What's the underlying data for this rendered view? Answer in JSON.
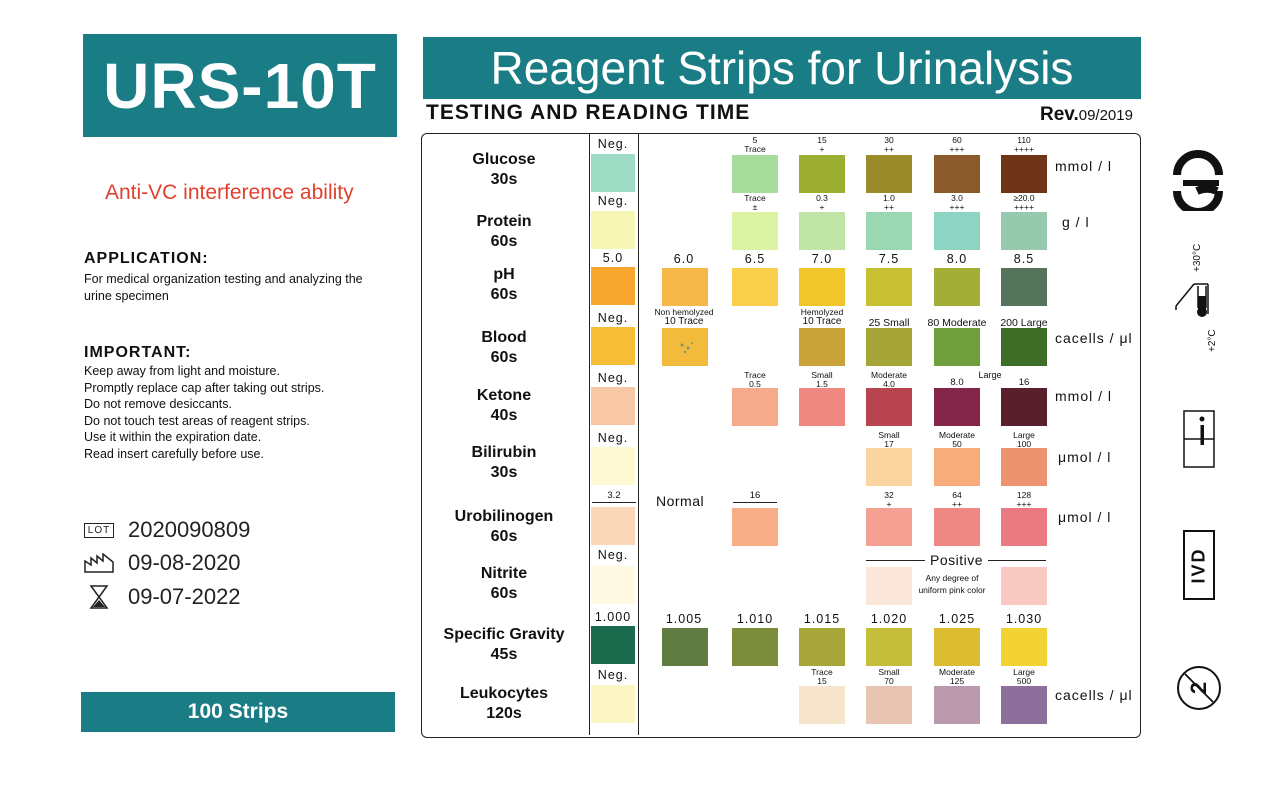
{
  "brand": "URS-10T",
  "feature": "Anti-VC interference ability",
  "application": {
    "heading": "APPLICATION:",
    "text": "For medical organization testing and analyzing the urine specimen"
  },
  "important": {
    "heading": "IMPORTANT:",
    "lines": [
      "Keep away from light and moisture.",
      "Promptly replace cap after taking out strips.",
      "Do not remove desiccants.",
      "Do not touch test areas of reagent strips.",
      "Use it within the expiration date.",
      "Read insert carefully before use."
    ]
  },
  "lot": {
    "label": "LOT",
    "value": "2020090809"
  },
  "manufactured": "09-08-2020",
  "expiry": "09-07-2022",
  "strips": "100 Strips",
  "title": "Reagent Strips for Urinalysis",
  "reading_time": "TESTING AND READING TIME",
  "rev": {
    "label": "Rev.",
    "value": "09/2019"
  },
  "neg": "Neg.",
  "rows": {
    "glucose": {
      "name": "Glucose",
      "time": "30s",
      "unit": "mmol / l",
      "labels": [
        [
          "5",
          "Trace"
        ],
        [
          "15",
          "+"
        ],
        [
          "30",
          "++"
        ],
        [
          "60",
          "+++"
        ],
        [
          "110",
          "++++"
        ]
      ]
    },
    "protein": {
      "name": "Protein",
      "time": "60s",
      "unit": "g / l",
      "labels": [
        [
          "Trace",
          "±"
        ],
        [
          "0.3",
          "+"
        ],
        [
          "1.0",
          "++"
        ],
        [
          "3.0",
          "+++"
        ],
        [
          "≥20.0",
          "++++"
        ]
      ]
    },
    "ph": {
      "name": "pH",
      "time": "60s",
      "labels": [
        "5.0",
        "6.0",
        "6.5",
        "7.0",
        "7.5",
        "8.0",
        "8.5"
      ]
    },
    "blood": {
      "name": "Blood",
      "time": "60s",
      "unit": "cacells / μl",
      "nonhem": [
        "Non hemolyzed",
        "10 Trace"
      ],
      "hem": [
        "Hemolyzed",
        "10 Trace"
      ],
      "labels": [
        "25 Small",
        "80 Moderate",
        "200 Large"
      ]
    },
    "ketone": {
      "name": "Ketone",
      "time": "40s",
      "unit": "mmol / l",
      "labels": [
        [
          "Trace",
          "0.5"
        ],
        [
          "Small",
          "1.5"
        ],
        [
          "Moderate",
          "4.0"
        ],
        [
          "",
          "8.0"
        ],
        [
          "",
          "16"
        ]
      ],
      "large": "Large"
    },
    "bilirubin": {
      "name": "Bilirubin",
      "time": "30s",
      "unit": "μmol / l",
      "labels": [
        [
          "Small",
          "17"
        ],
        [
          "Moderate",
          "50"
        ],
        [
          "Large",
          "100"
        ]
      ]
    },
    "urobilinogen": {
      "name": "Urobilinogen",
      "time": "60s",
      "unit": "μmol / l",
      "range1": "3.2",
      "normal": "Normal",
      "range2": "16",
      "labels": [
        [
          "32",
          "+"
        ],
        [
          "64",
          "++"
        ],
        [
          "128",
          "+++"
        ]
      ]
    },
    "nitrite": {
      "name": "Nitrite",
      "time": "60s",
      "positive": "Positive",
      "note": [
        "Any degree of",
        "uniform pink color"
      ]
    },
    "sg": {
      "name": "Specific Gravity",
      "time": "45s",
      "labels": [
        "1.000",
        "1.005",
        "1.010",
        "1.015",
        "1.020",
        "1.025",
        "1.030"
      ]
    },
    "leukocytes": {
      "name": "Leukocytes",
      "time": "120s",
      "unit": "cacells / μl",
      "labels": [
        [
          "Trace",
          "15"
        ],
        [
          "Small",
          "70"
        ],
        [
          "Moderate",
          "125"
        ],
        [
          "Large",
          "500"
        ]
      ]
    }
  },
  "colors": {
    "teal": "#1a7d85",
    "glucose": [
      "#9fdcc6",
      "#a7dc9c",
      "#9daf32",
      "#9a8a2a",
      "#8a5a2a",
      "#6e3418"
    ],
    "protein": [
      "#f6f7b4",
      "#dcf3a4",
      "#bfe4a6",
      "#9ad8b4",
      "#8ed4c2",
      "#96c9ae"
    ],
    "ph": [
      "#f7a72e",
      "#f7b84a",
      "#f9cf4c",
      "#f1c62a",
      "#c6c032",
      "#a3ae37",
      "#56745b"
    ],
    "blood": [
      "#f6be34",
      "#f2bb3b",
      "#c9a23a",
      "#a5a537",
      "#6f9e3d",
      "#3e6d27"
    ],
    "ketone": [
      "#f8c7a6",
      "#f6aa8c",
      "#ef8880",
      "#b7444f",
      "#84264a",
      "#5a1f2c"
    ],
    "bilirubin": [
      "#fef9d2",
      "#fbd59f",
      "#f8ac7c",
      "#ec9370"
    ],
    "urobilinogen": [
      "#f9d7b7",
      "#f6ad88",
      "#f4a093",
      "#ef8785",
      "#ea7a81"
    ],
    "nitrite": [
      "#fdf9e2",
      "#fbe7d9",
      "#f7c9c0"
    ],
    "sg": [
      "#1a6b4e",
      "#627d43",
      "#7b8d3b",
      "#a7a63a",
      "#c4be3a",
      "#dcbc30",
      "#f3d234"
    ],
    "leukocytes": [
      "#fdf7c6",
      "#f6e4cb",
      "#e8c4b3",
      "#bb99ad",
      "#8d6f9c"
    ]
  },
  "symbols": {
    "ce": "CE",
    "temp_high": "+30°C",
    "temp_low": "+2°C",
    "ivd": "IVD",
    "single_use": "2"
  }
}
